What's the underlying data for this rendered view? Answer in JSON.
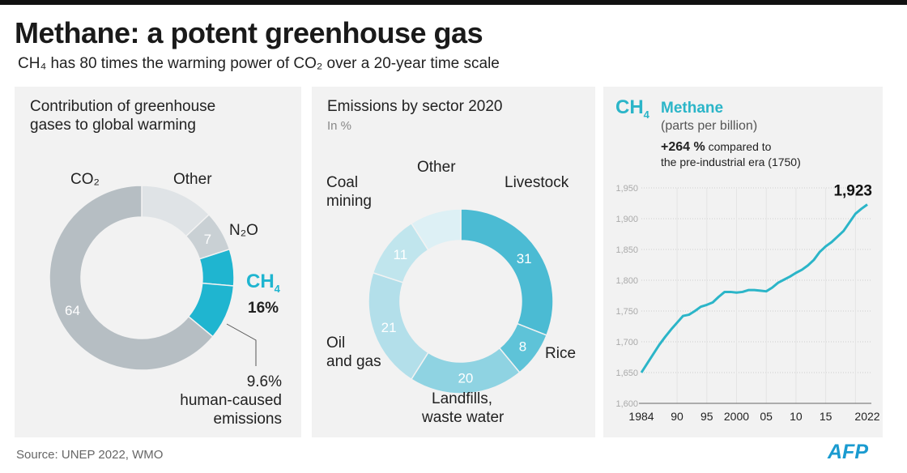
{
  "header": {
    "title": "Methane: a potent greenhouse gas",
    "subtitle": "CH₄ has 80 times the warming power of CO₂ over a 20-year time scale"
  },
  "footer": {
    "source": "Source: UNEP 2022, WMO",
    "logo": "AFP"
  },
  "colors": {
    "accent": "#1fb5d0",
    "panel": "#f2f2f2"
  },
  "chart_data": [
    {
      "type": "pie",
      "title": "Contribution of greenhouse gases to global warming",
      "slices": [
        {
          "label": "Other",
          "value": 13,
          "color": "#dfe3e6",
          "data_label": ""
        },
        {
          "label": "N₂O",
          "value": 7,
          "color": "#c9d0d4",
          "data_label": "7"
        },
        {
          "label": "CH₄",
          "value": 6.4,
          "color": "#1fb5d0",
          "data_label": ""
        },
        {
          "label": "CH₄ human-caused",
          "value": 9.6,
          "color": "#1fb5d0",
          "data_label": ""
        },
        {
          "label": "CO₂",
          "value": 64,
          "color": "#b6bec3",
          "data_label": "64"
        }
      ],
      "annotations": {
        "ch4_label": "CH",
        "ch4_sub": "4",
        "ch4_total": "16%",
        "human_value": "9.6%",
        "human_line1": "human-caused",
        "human_line2": "emissions"
      }
    },
    {
      "type": "pie",
      "title": "Emissions by sector 2020",
      "subtitle": "In %",
      "slices": [
        {
          "label": "Livestock",
          "value": 31,
          "color": "#4bbbd3",
          "data_label": "31"
        },
        {
          "label": "Rice",
          "value": 8,
          "color": "#5ec3d8",
          "data_label": "8"
        },
        {
          "label": "Landfills, waste water",
          "value": 20,
          "color": "#8fd3e2",
          "data_label": "20"
        },
        {
          "label": "Oil and gas",
          "value": 21,
          "color": "#b3dfea",
          "data_label": "21"
        },
        {
          "label": "Coal mining",
          "value": 11,
          "color": "#c0e5ed",
          "data_label": "11"
        },
        {
          "label": "Other",
          "value": 9,
          "color": "#ddf0f5",
          "data_label": ""
        }
      ],
      "labels": {
        "livestock": "Livestock",
        "rice": "Rice",
        "landfills1": "Landfills,",
        "landfills2": "waste water",
        "oil1": "Oil",
        "oil2": "and gas",
        "coal1": "Coal",
        "coal2": "mining",
        "other": "Other"
      }
    },
    {
      "type": "line",
      "title_formula": "CH",
      "title_sub": "4",
      "title": "Methane",
      "unit": "(parts per billion)",
      "note_bold": "+264 %",
      "note": "compared to",
      "note2": "the pre-industrial era (1750)",
      "x": [
        1984,
        1985,
        1986,
        1987,
        1988,
        1989,
        1990,
        1991,
        1992,
        1993,
        1994,
        1995,
        1996,
        1997,
        1998,
        1999,
        2000,
        2001,
        2002,
        2003,
        2004,
        2005,
        2006,
        2007,
        2008,
        2009,
        2010,
        2011,
        2012,
        2013,
        2014,
        2015,
        2016,
        2017,
        2018,
        2019,
        2020,
        2021,
        2022
      ],
      "y": [
        1650,
        1665,
        1680,
        1695,
        1708,
        1720,
        1731,
        1742,
        1744,
        1750,
        1757,
        1760,
        1764,
        1773,
        1781,
        1781,
        1780,
        1781,
        1784,
        1784,
        1783,
        1782,
        1788,
        1796,
        1801,
        1806,
        1812,
        1817,
        1824,
        1833,
        1846,
        1855,
        1862,
        1871,
        1880,
        1894,
        1908,
        1916,
        1923
      ],
      "ylim": [
        1600,
        1950
      ],
      "yticks": [
        "1,600",
        "1,650",
        "1,700",
        "1,750",
        "1,800",
        "1,850",
        "1,900",
        "1,950"
      ],
      "xticks": [
        {
          "year": 1984,
          "label": "1984"
        },
        {
          "year": 1990,
          "label": "90"
        },
        {
          "year": 1995,
          "label": "95"
        },
        {
          "year": 2000,
          "label": "2000"
        },
        {
          "year": 2005,
          "label": "05"
        },
        {
          "year": 2010,
          "label": "10"
        },
        {
          "year": 2015,
          "label": "15"
        },
        {
          "year": 2022,
          "label": "2022"
        }
      ],
      "end_label": "1,923",
      "color": "#2bb5c8",
      "grid": true
    }
  ]
}
